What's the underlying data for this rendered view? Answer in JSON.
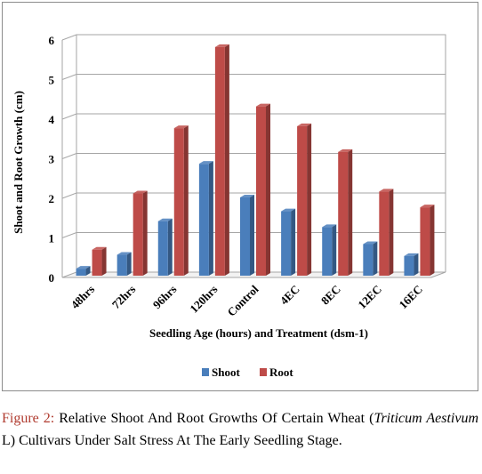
{
  "chart_data": {
    "type": "bar",
    "title": "",
    "xlabel": "Seedling Age (hours) and Treatment (dsm-1)",
    "ylabel": "Shoot and Root Growth (cm)",
    "categories": [
      "48hrs",
      "72hrs",
      "96hrs",
      "120hrs",
      "Control",
      "4EC",
      "8EC",
      "12EC",
      "16EC"
    ],
    "series": [
      {
        "name": "Shoot",
        "color": "#4a7ebb",
        "values": [
          0.2,
          0.55,
          1.4,
          2.85,
          2.0,
          1.65,
          1.25,
          0.82,
          0.52
        ]
      },
      {
        "name": "Root",
        "color": "#be4b48",
        "values": [
          0.68,
          2.1,
          3.75,
          5.8,
          4.3,
          3.8,
          3.15,
          2.15,
          1.75
        ]
      }
    ],
    "ylim": [
      0,
      6
    ],
    "yticks": [
      "0",
      "1",
      "2",
      "3",
      "4",
      "5",
      "6"
    ],
    "grid": true,
    "legend_position": "bottom"
  },
  "caption": {
    "label": "Figure 2:",
    "text_before": " Relative Shoot And Root Growths Of Certain Wheat (",
    "italic": "Triticum Aestivum",
    "text_after": " L) Cultivars Under Salt Stress At The Early Seedling Stage."
  }
}
